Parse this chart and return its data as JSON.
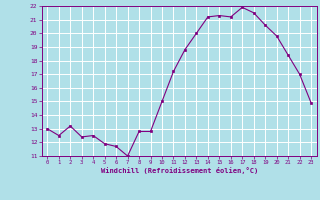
{
  "x": [
    0,
    1,
    2,
    3,
    4,
    5,
    6,
    7,
    8,
    9,
    10,
    11,
    12,
    13,
    14,
    15,
    16,
    17,
    18,
    19,
    20,
    21,
    22,
    23
  ],
  "y": [
    13,
    12.5,
    13.2,
    12.4,
    12.5,
    11.9,
    11.7,
    11.0,
    12.8,
    12.8,
    15.0,
    17.2,
    18.8,
    20.0,
    21.2,
    21.3,
    21.2,
    21.9,
    21.5,
    20.6,
    19.8,
    18.4,
    17.0,
    14.9
  ],
  "ylim": [
    11,
    22
  ],
  "yticks": [
    11,
    12,
    13,
    14,
    15,
    16,
    17,
    18,
    19,
    20,
    21,
    22
  ],
  "xticks": [
    0,
    1,
    2,
    3,
    4,
    5,
    6,
    7,
    8,
    9,
    10,
    11,
    12,
    13,
    14,
    15,
    16,
    17,
    18,
    19,
    20,
    21,
    22,
    23
  ],
  "xlabel": "Windchill (Refroidissement éolien,°C)",
  "line_color": "#800080",
  "marker_color": "#800080",
  "bg_color": "#b0e0e8",
  "grid_color": "#ffffff"
}
